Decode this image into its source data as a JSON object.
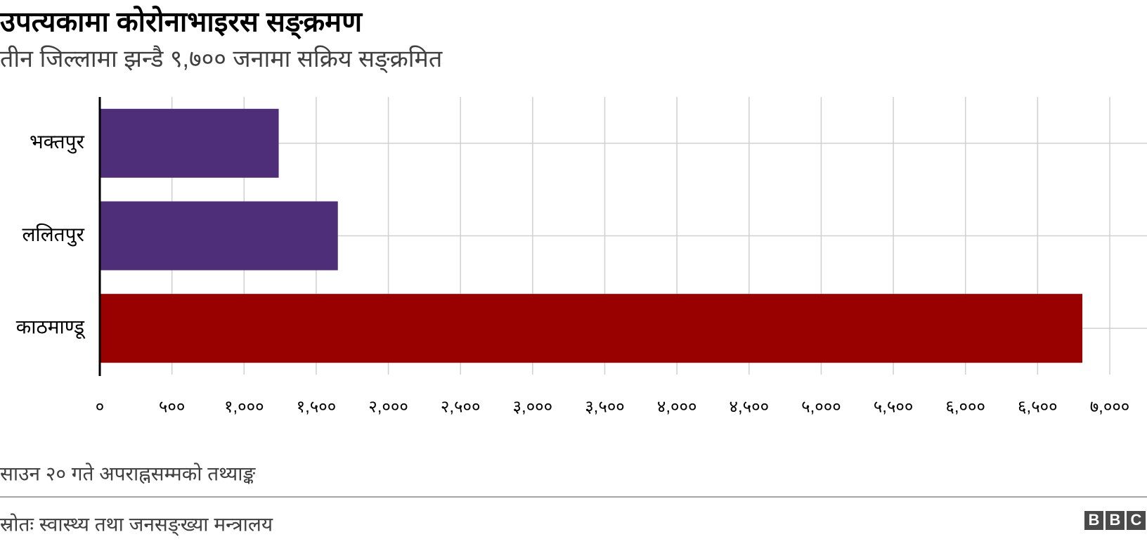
{
  "chart_data": {
    "type": "hbar",
    "title": "उपत्यकामा कोरोनाभाइरस सङ्क्रमण",
    "subtitle": "तीन जिल्लामा झन्डै ९,७०० जनामा सक्रिय सङ्क्रमित",
    "categories": [
      "भक्तपुर",
      "ललितपुर",
      "काठमाण्डू"
    ],
    "values": [
      1240,
      1650,
      6810
    ],
    "colors": [
      "#4e2d79",
      "#4e2d79",
      "#990000"
    ],
    "xlim": [
      0,
      7000
    ],
    "xticks": [
      {
        "value": 0,
        "label": "०"
      },
      {
        "value": 500,
        "label": "५००"
      },
      {
        "value": 1000,
        "label": "१,०००"
      },
      {
        "value": 1500,
        "label": "१,५००"
      },
      {
        "value": 2000,
        "label": "२,०००"
      },
      {
        "value": 2500,
        "label": "२,५००"
      },
      {
        "value": 3000,
        "label": "३,०००"
      },
      {
        "value": 3500,
        "label": "३,५००"
      },
      {
        "value": 4000,
        "label": "४,०००"
      },
      {
        "value": 4500,
        "label": "४,५००"
      },
      {
        "value": 5000,
        "label": "५,०००"
      },
      {
        "value": 5500,
        "label": "५,५००"
      },
      {
        "value": 6000,
        "label": "६,०००"
      },
      {
        "value": 6500,
        "label": "६,५००"
      },
      {
        "value": 7000,
        "label": "७,०००"
      }
    ],
    "grid": true,
    "note": "साउन २० गते अपराह्नसम्मको तथ्याङ्क",
    "source": "स्रोतः स्वास्थ्य तथा जनसङ्ख्या मन्त्रालय",
    "logo": [
      "B",
      "B",
      "C"
    ]
  }
}
